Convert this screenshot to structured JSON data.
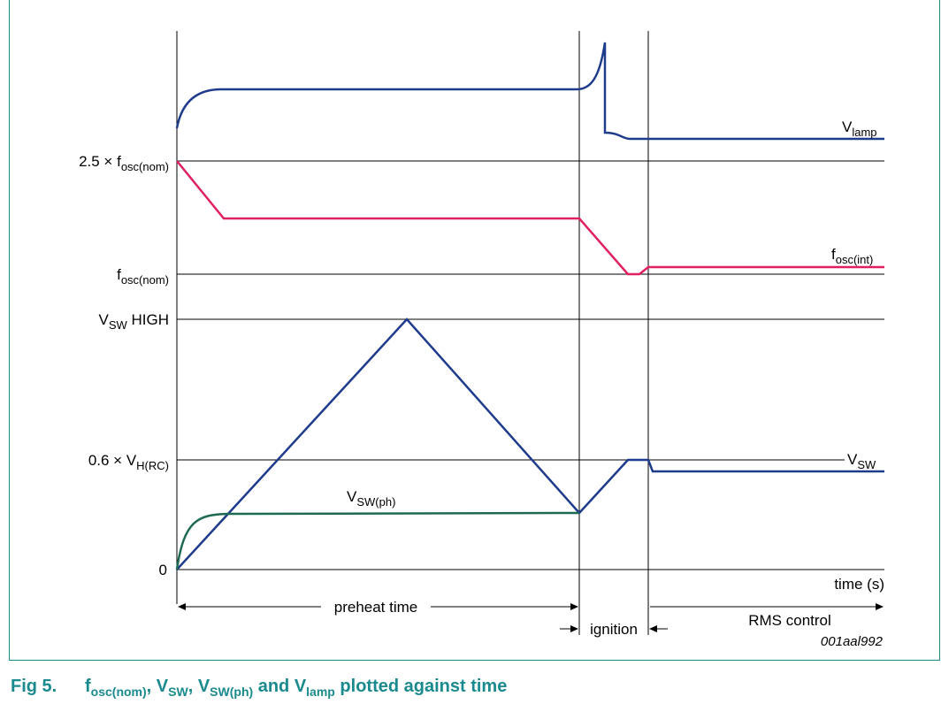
{
  "y_labels": {
    "fosc_2p5": {
      "prefix": "2.5 × f",
      "sub": "osc(nom)"
    },
    "fosc_nom": {
      "prefix": "f",
      "sub": "osc(nom)"
    },
    "vsw_high": {
      "prefix": "V",
      "sub": "SW",
      "suffix": " HIGH"
    },
    "vh_rc": {
      "prefix": "0.6 × V",
      "sub": "H(RC)"
    },
    "zero": "0"
  },
  "curve_labels": {
    "vlamp": {
      "main": "V",
      "sub": "lamp"
    },
    "fosc_int": {
      "main": "f",
      "sub": "osc(int)"
    },
    "vsw": {
      "main": "V",
      "sub": "SW"
    },
    "vsw_ph": {
      "main": "V",
      "sub": "SW(ph)"
    }
  },
  "axis": {
    "time": "time (s)"
  },
  "phases": {
    "preheat": "preheat time",
    "ignition": "ignition",
    "rms": "RMS control"
  },
  "figure_code": "001aal992",
  "caption": {
    "number": "Fig 5.",
    "t1_main": "f",
    "t1_sub": "osc(nom)",
    "sep1": ", ",
    "t2_main": "V",
    "t2_sub": "SW",
    "sep2": ", ",
    "t3_main": "V",
    "t3_sub": "SW(ph)",
    "sep3": " and ",
    "t4_main": "V",
    "t4_sub": "lamp",
    "tail": " plotted against time"
  },
  "colors": {
    "vlamp": "#1f3b8c",
    "fosc_int": "#e0215f",
    "vsw": "#1f3b8c",
    "vsw_ph": "#1e6a52",
    "accent": "#1a8a8f"
  }
}
